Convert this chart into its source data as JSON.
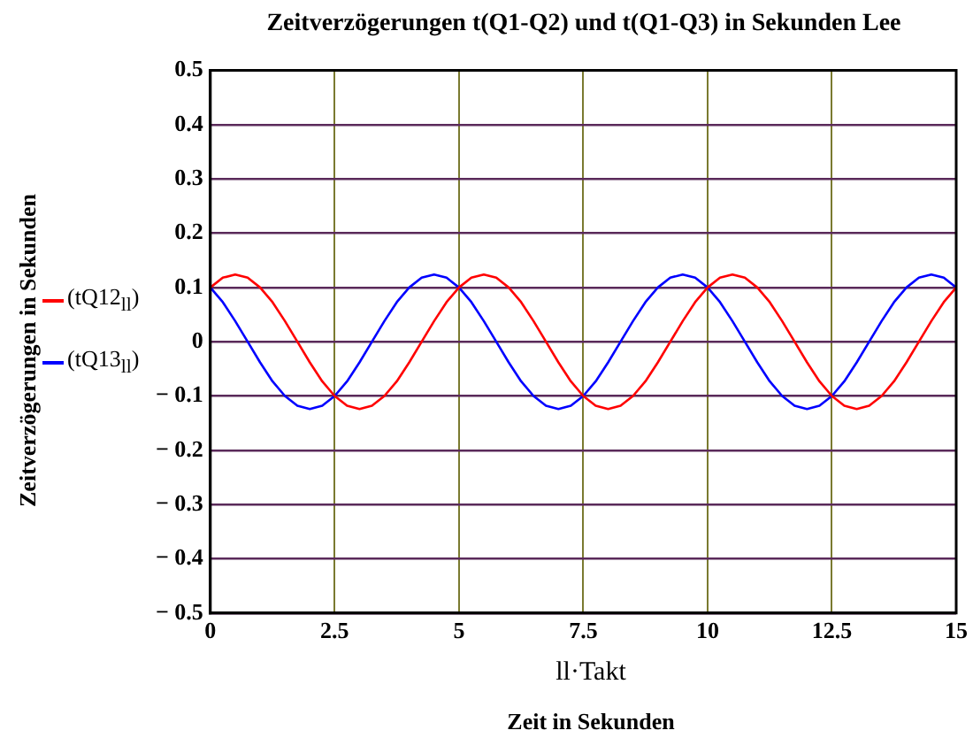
{
  "chart_data": {
    "type": "line",
    "title": "Zeitverzögerungen t(Q1-Q2) und t(Q1-Q3) in Sekunden Lee",
    "xlabel": "ll·Takt",
    "ylabel": "Zeitverzögerungen in Sekunden",
    "annotations": [
      "Zeit in Sekunden"
    ],
    "x": [
      0,
      0.25,
      0.5,
      0.75,
      1,
      1.25,
      1.5,
      1.75,
      2,
      2.25,
      2.5,
      2.75,
      3,
      3.25,
      3.5,
      3.75,
      4,
      4.25,
      4.5,
      4.75,
      5,
      5.25,
      5.5,
      5.75,
      6,
      6.25,
      6.5,
      6.75,
      7,
      7.25,
      7.5,
      7.75,
      8,
      8.25,
      8.5,
      8.75,
      9,
      9.25,
      9.5,
      9.75,
      10,
      10.25,
      10.5,
      10.75,
      11,
      11.25,
      11.5,
      11.75,
      12,
      12.25,
      12.5,
      12.75,
      13,
      13.25,
      13.5,
      13.75,
      14,
      14.25,
      14.5,
      14.75,
      15
    ],
    "series": [
      {
        "name": "(tQ12$_{ll}$)",
        "color": "#ff0000",
        "values": [
          0.1,
          0.118,
          0.124,
          0.118,
          0.1,
          0.073,
          0.038,
          0,
          -0.038,
          -0.073,
          -0.1,
          -0.118,
          -0.124,
          -0.118,
          -0.1,
          -0.073,
          -0.038,
          0,
          0.038,
          0.073,
          0.1,
          0.118,
          0.124,
          0.118,
          0.1,
          0.073,
          0.038,
          0,
          -0.038,
          -0.073,
          -0.1,
          -0.118,
          -0.124,
          -0.118,
          -0.1,
          -0.073,
          -0.038,
          0,
          0.038,
          0.073,
          0.1,
          0.118,
          0.124,
          0.118,
          0.1,
          0.073,
          0.038,
          0,
          -0.038,
          -0.073,
          -0.1,
          -0.118,
          -0.124,
          -0.118,
          -0.1,
          -0.073,
          -0.038,
          0,
          0.038,
          0.073,
          0.1
        ]
      },
      {
        "name": "(tQ13$_{ll}$)",
        "color": "#0000ff",
        "values": [
          0.1,
          0.073,
          0.038,
          0,
          -0.038,
          -0.073,
          -0.1,
          -0.118,
          -0.124,
          -0.118,
          -0.1,
          -0.073,
          -0.038,
          0,
          0.038,
          0.073,
          0.1,
          0.118,
          0.124,
          0.118,
          0.1,
          0.073,
          0.038,
          0,
          -0.038,
          -0.073,
          -0.1,
          -0.118,
          -0.124,
          -0.118,
          -0.1,
          -0.073,
          -0.038,
          0,
          0.038,
          0.073,
          0.1,
          0.118,
          0.124,
          0.118,
          0.1,
          0.073,
          0.038,
          0,
          -0.038,
          -0.073,
          -0.1,
          -0.118,
          -0.124,
          -0.118,
          -0.1,
          -0.073,
          -0.038,
          0,
          0.038,
          0.073,
          0.1,
          0.118,
          0.124,
          0.118,
          0.1
        ]
      }
    ],
    "xlim": [
      0,
      15
    ],
    "xticks": [
      0,
      2.5,
      5,
      7.5,
      10,
      12.5,
      15
    ],
    "ylim": [
      -0.5,
      0.5
    ],
    "yticks": [
      {
        "value": -0.5,
        "label": "− 0.5"
      },
      {
        "value": -0.4,
        "label": "− 0.4"
      },
      {
        "value": -0.3,
        "label": "− 0.3"
      },
      {
        "value": -0.2,
        "label": "− 0.2"
      },
      {
        "value": -0.1,
        "label": "− 0.1"
      },
      0,
      0.1,
      0.2,
      0.3,
      0.4,
      0.5
    ],
    "grid": true,
    "legend": "left",
    "marker": "none",
    "line_style": "solid"
  }
}
